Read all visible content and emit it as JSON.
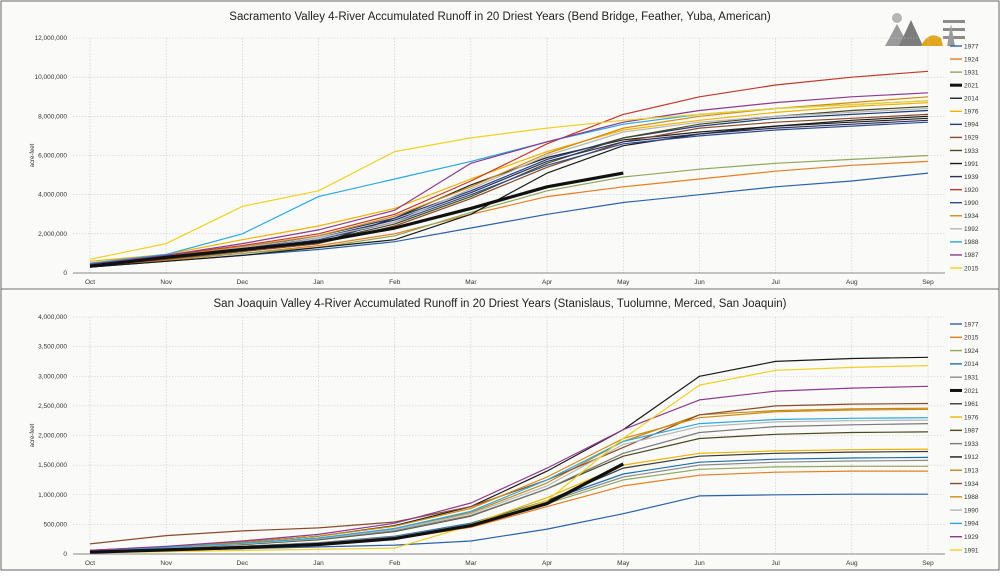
{
  "chart_data": [
    {
      "type": "line",
      "title": "Sacramento Valley 4-River Accumulated Runoff in 20 Driest Years (Bend Bridge, Feather, Yuba, American)",
      "ylabel": "acre-feet",
      "xlabel": "",
      "categories": [
        "Oct",
        "Nov",
        "Dec",
        "Jan",
        "Feb",
        "Mar",
        "Apr",
        "May",
        "Jun",
        "Jul",
        "Aug",
        "Sep"
      ],
      "ylim": [
        0,
        12000000
      ],
      "yticks": [
        0,
        2000000,
        4000000,
        6000000,
        8000000,
        10000000,
        12000000
      ],
      "ytick_labels": [
        "0",
        "2,000,000",
        "4,000,000",
        "6,000,000",
        "8,000,000",
        "10,000,000",
        "12,000,000"
      ],
      "grid": true,
      "legend_position": "right",
      "series": [
        {
          "name": "1977",
          "color": "#2b62a8",
          "width": 1.2,
          "values": [
            300000,
            600000,
            900000,
            1200000,
            1600000,
            2300000,
            3000000,
            3600000,
            4000000,
            4400000,
            4700000,
            5100000
          ]
        },
        {
          "name": "1924",
          "color": "#e67e22",
          "width": 1.2,
          "values": [
            350000,
            650000,
            1000000,
            1400000,
            2000000,
            3000000,
            3900000,
            4400000,
            4800000,
            5200000,
            5500000,
            5700000
          ]
        },
        {
          "name": "1931",
          "color": "#8fa85a",
          "width": 1.2,
          "values": [
            400000,
            700000,
            1000000,
            1300000,
            1900000,
            3100000,
            4200000,
            4900000,
            5300000,
            5600000,
            5800000,
            6000000
          ]
        },
        {
          "name": "2021",
          "color": "#111111",
          "width": 3.2,
          "values": [
            350000,
            800000,
            1200000,
            1600000,
            2300000,
            3300000,
            4400000,
            5100000,
            null,
            null,
            null,
            null
          ]
        },
        {
          "name": "2014",
          "color": "#222222",
          "width": 1.2,
          "values": [
            400000,
            750000,
            1100000,
            1500000,
            2800000,
            4500000,
            5900000,
            6800000,
            7200000,
            7500000,
            7700000,
            7900000
          ]
        },
        {
          "name": "1976",
          "color": "#f0b400",
          "width": 1.2,
          "values": [
            600000,
            950000,
            1700000,
            2400000,
            3300000,
            4800000,
            6200000,
            7300000,
            7800000,
            8200000,
            8500000,
            8700000
          ]
        },
        {
          "name": "1994",
          "color": "#1f3d7a",
          "width": 1.2,
          "values": [
            450000,
            850000,
            1300000,
            1900000,
            2800000,
            4200000,
            5800000,
            6900000,
            7500000,
            7900000,
            8100000,
            8300000
          ]
        },
        {
          "name": "1929",
          "color": "#8a4b2a",
          "width": 1.2,
          "values": [
            350000,
            700000,
            1100000,
            1500000,
            2400000,
            3800000,
            5400000,
            6700000,
            7400000,
            7700000,
            7900000,
            8100000
          ]
        },
        {
          "name": "1933",
          "color": "#4a4a1f",
          "width": 1.2,
          "values": [
            380000,
            720000,
            1150000,
            1600000,
            2500000,
            3900000,
            5600000,
            6900000,
            7600000,
            8000000,
            8300000,
            8500000
          ]
        },
        {
          "name": "1991",
          "color": "#1a1a1a",
          "width": 1.2,
          "values": [
            300000,
            600000,
            900000,
            1300000,
            1700000,
            3000000,
            5100000,
            6500000,
            7100000,
            7500000,
            7800000,
            8000000
          ]
        },
        {
          "name": "1939",
          "color": "#2e2e5c",
          "width": 1.2,
          "values": [
            420000,
            780000,
            1250000,
            1800000,
            2700000,
            4100000,
            5700000,
            6700000,
            7100000,
            7400000,
            7600000,
            7800000
          ]
        },
        {
          "name": "1920",
          "color": "#c0392b",
          "width": 1.2,
          "values": [
            500000,
            900000,
            1400000,
            2000000,
            3000000,
            4700000,
            6600000,
            8100000,
            9000000,
            9600000,
            10000000,
            10300000
          ]
        },
        {
          "name": "1990",
          "color": "#2a4e8c",
          "width": 1.2,
          "values": [
            380000,
            750000,
            1200000,
            1700000,
            2600000,
            4000000,
            5500000,
            6600000,
            7000000,
            7300000,
            7500000,
            7700000
          ]
        },
        {
          "name": "1934",
          "color": "#d48a12",
          "width": 1.2,
          "values": [
            450000,
            850000,
            1350000,
            1900000,
            2900000,
            4400000,
            6100000,
            7400000,
            8000000,
            8400000,
            8700000,
            9000000
          ]
        },
        {
          "name": "1992",
          "color": "#b6b6b6",
          "width": 1.2,
          "values": [
            400000,
            800000,
            1300000,
            1800000,
            2600000,
            4300000,
            6000000,
            7200000,
            7700000,
            8000000,
            8200000,
            8400000
          ]
        },
        {
          "name": "1988",
          "color": "#29a8e0",
          "width": 1.2,
          "values": [
            500000,
            950000,
            2000000,
            3900000,
            4800000,
            5700000,
            6700000,
            7600000,
            8100000,
            8400000,
            8600000,
            8800000
          ]
        },
        {
          "name": "1987",
          "color": "#8e3a8e",
          "width": 1.2,
          "values": [
            450000,
            900000,
            1500000,
            2200000,
            3200000,
            5600000,
            6700000,
            7700000,
            8300000,
            8700000,
            9000000,
            9200000
          ]
        },
        {
          "name": "2015",
          "color": "#f2d024",
          "width": 1.2,
          "values": [
            700000,
            1500000,
            3400000,
            4200000,
            6200000,
            6900000,
            7400000,
            7800000,
            8100000,
            8400000,
            8600000,
            8800000
          ]
        }
      ]
    },
    {
      "type": "line",
      "title": "San Joaquin Valley 4-River Accumulated Runoff in 20 Driest Years (Stanislaus, Tuolumne, Merced, San Joaquin)",
      "ylabel": "acre-feet",
      "xlabel": "",
      "categories": [
        "Oct",
        "Nov",
        "Dec",
        "Jan",
        "Feb",
        "Mar",
        "Apr",
        "May",
        "Jun",
        "Jul",
        "Aug",
        "Sep"
      ],
      "ylim": [
        0,
        4000000
      ],
      "yticks": [
        0,
        500000,
        1000000,
        1500000,
        2000000,
        2500000,
        3000000,
        3500000,
        4000000
      ],
      "ytick_labels": [
        "0",
        "500,000",
        "1,000,000",
        "1,500,000",
        "2,000,000",
        "2,500,000",
        "3,000,000",
        "3,500,000",
        "4,000,000"
      ],
      "grid": true,
      "legend_position": "right",
      "series": [
        {
          "name": "1977",
          "color": "#2b62a8",
          "width": 1.2,
          "values": [
            30000,
            60000,
            90000,
            120000,
            150000,
            220000,
            420000,
            680000,
            980000,
            1000000,
            1010000,
            1010000
          ]
        },
        {
          "name": "2015",
          "color": "#e67e22",
          "width": 1.2,
          "values": [
            40000,
            80000,
            120000,
            170000,
            250000,
            450000,
            800000,
            1150000,
            1330000,
            1380000,
            1400000,
            1400000
          ]
        },
        {
          "name": "1924",
          "color": "#8fa85a",
          "width": 1.2,
          "values": [
            50000,
            90000,
            130000,
            180000,
            280000,
            480000,
            850000,
            1250000,
            1430000,
            1470000,
            1480000,
            1480000
          ]
        },
        {
          "name": "2014",
          "color": "#1f6fae",
          "width": 1.2,
          "values": [
            40000,
            80000,
            130000,
            190000,
            300000,
            520000,
            900000,
            1350000,
            1550000,
            1600000,
            1620000,
            1630000
          ]
        },
        {
          "name": "1931",
          "color": "#8a8a8a",
          "width": 1.2,
          "values": [
            45000,
            85000,
            130000,
            190000,
            290000,
            500000,
            880000,
            1300000,
            1500000,
            1550000,
            1570000,
            1580000
          ]
        },
        {
          "name": "2021",
          "color": "#111111",
          "width": 3.2,
          "values": [
            30000,
            70000,
            110000,
            160000,
            260000,
            480000,
            850000,
            1520000,
            null,
            null,
            null,
            null
          ]
        },
        {
          "name": "1961",
          "color": "#3a3a3a",
          "width": 1.2,
          "values": [
            40000,
            80000,
            120000,
            170000,
            260000,
            480000,
            900000,
            1450000,
            1650000,
            1700000,
            1720000,
            1730000
          ]
        },
        {
          "name": "1976",
          "color": "#f0b400",
          "width": 1.2,
          "values": [
            40000,
            80000,
            120000,
            170000,
            260000,
            500000,
            950000,
            1500000,
            1700000,
            1740000,
            1760000,
            1770000
          ]
        },
        {
          "name": "1987",
          "color": "#4a4a1f",
          "width": 1.2,
          "values": [
            50000,
            100000,
            160000,
            240000,
            380000,
            640000,
            1100000,
            1650000,
            1950000,
            2020000,
            2050000,
            2060000
          ]
        },
        {
          "name": "1933",
          "color": "#7a7a7a",
          "width": 1.2,
          "values": [
            60000,
            110000,
            170000,
            250000,
            390000,
            650000,
            1100000,
            1700000,
            2050000,
            2150000,
            2180000,
            2200000
          ]
        },
        {
          "name": "1912",
          "color": "#1a1a1a",
          "width": 1.2,
          "values": [
            60000,
            120000,
            200000,
            300000,
            480000,
            800000,
            1400000,
            2100000,
            3000000,
            3250000,
            3300000,
            3320000
          ]
        },
        {
          "name": "1913",
          "color": "#c08a1a",
          "width": 1.2,
          "values": [
            60000,
            110000,
            180000,
            270000,
            430000,
            700000,
            1200000,
            1900000,
            2350000,
            2420000,
            2450000,
            2460000
          ]
        },
        {
          "name": "1934",
          "color": "#8a4b2a",
          "width": 1.2,
          "values": [
            170000,
            310000,
            390000,
            440000,
            540000,
            800000,
            1250000,
            1800000,
            2350000,
            2500000,
            2530000,
            2540000
          ]
        },
        {
          "name": "1988",
          "color": "#d48a12",
          "width": 1.2,
          "values": [
            60000,
            120000,
            200000,
            300000,
            470000,
            770000,
            1300000,
            1950000,
            2300000,
            2400000,
            2430000,
            2440000
          ]
        },
        {
          "name": "1990",
          "color": "#b6b6b6",
          "width": 1.2,
          "values": [
            50000,
            100000,
            170000,
            260000,
            410000,
            680000,
            1150000,
            1850000,
            2150000,
            2230000,
            2250000,
            2260000
          ]
        },
        {
          "name": "1994",
          "color": "#29a8e0",
          "width": 1.2,
          "values": [
            50000,
            110000,
            180000,
            270000,
            430000,
            720000,
            1250000,
            1900000,
            2200000,
            2270000,
            2290000,
            2300000
          ]
        },
        {
          "name": "1929",
          "color": "#8e3a8e",
          "width": 1.2,
          "values": [
            60000,
            130000,
            220000,
            330000,
            520000,
            860000,
            1450000,
            2100000,
            2600000,
            2750000,
            2800000,
            2830000
          ]
        },
        {
          "name": "1991",
          "color": "#f2d024",
          "width": 1.2,
          "values": [
            20000,
            40000,
            60000,
            80000,
            100000,
            480000,
            900000,
            1950000,
            2850000,
            3100000,
            3150000,
            3180000
          ]
        }
      ]
    }
  ]
}
